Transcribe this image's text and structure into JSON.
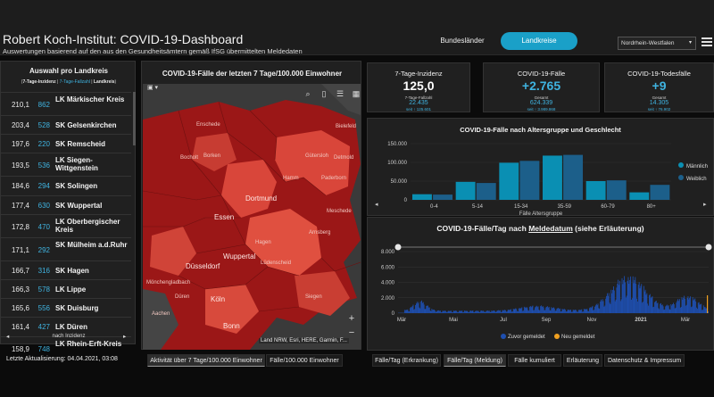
{
  "header": {
    "title": "Robert Koch-Institut: COVID-19-Dashboard",
    "subtitle": "Auswertungen basierend auf den aus den Gesundheitsämtern gemäß IfSG übermittelten Meldedaten",
    "nav": {
      "bundeslaender": "Bundesländer",
      "landkreise": "Landkreise"
    },
    "region_select": "Nordrhein-Westfalen"
  },
  "left_panel": {
    "title": "Auswahl pro Landkreis",
    "subtitle_inc": "7-Tage-Inzidenz",
    "subtitle_cnt": "7-Tage-Fallzahl",
    "subtitle_lk": "Landkreis",
    "rows": [
      {
        "inc": "210,1",
        "cnt": "862",
        "name": "LK Märkischer Kreis"
      },
      {
        "inc": "203,4",
        "cnt": "528",
        "name": "SK Gelsenkirchen"
      },
      {
        "inc": "197,6",
        "cnt": "220",
        "name": "SK Remscheid"
      },
      {
        "inc": "193,5",
        "cnt": "536",
        "name": "LK Siegen-Wittgenstein"
      },
      {
        "inc": "184,6",
        "cnt": "294",
        "name": "SK Solingen"
      },
      {
        "inc": "177,4",
        "cnt": "630",
        "name": "SK Wuppertal"
      },
      {
        "inc": "172,8",
        "cnt": "470",
        "name": "LK Oberbergischer Kreis"
      },
      {
        "inc": "171,1",
        "cnt": "292",
        "name": "SK Mülheim a.d.Ruhr"
      },
      {
        "inc": "166,7",
        "cnt": "316",
        "name": "SK Hagen"
      },
      {
        "inc": "166,3",
        "cnt": "578",
        "name": "LK Lippe"
      },
      {
        "inc": "165,6",
        "cnt": "556",
        "name": "SK Duisburg"
      },
      {
        "inc": "161,4",
        "cnt": "427",
        "name": "LK Düren"
      },
      {
        "inc": "158,9",
        "cnt": "748",
        "name": "LK Rhein-Erft-Kreis"
      }
    ],
    "footer": "nach Inzidenz"
  },
  "map": {
    "title": "COVID-19-Fälle der letzten 7 Tage/100.000 Einwohner",
    "attribution": "Land NRW, Esri, HERE, Garmin, F...",
    "zoom_in": "+",
    "zoom_out": "−",
    "cities": [
      "Enschede",
      "Bielefeld",
      "Bocholt",
      "Borken",
      "Dortmund",
      "Hamm",
      "Paderborn",
      "Essen",
      "Wuppertal",
      "Düsseldorf",
      "Hagen",
      "Lüdenscheid",
      "Arnsberg",
      "Mönchengladbach",
      "Köln",
      "Bonn",
      "Siegen",
      "Aachen",
      "Düren",
      "Detmold",
      "Gütersloh",
      "Meschede"
    ]
  },
  "kpis": [
    {
      "title": "7-Tage-Inzidenz",
      "value": "125,0",
      "label": "7-Tage-Fallzahl",
      "number": "22.435",
      "delta": "seit ↑ 125.601"
    },
    {
      "title": "COVID-19-Fälle",
      "value": "+2.765",
      "label": "Gesamt",
      "number": "624.339",
      "delta": "seit ↑ 3.989.868"
    },
    {
      "title": "COVID-19-Todesfälle",
      "value": "+9",
      "label": "Gesamt",
      "number": "14.305",
      "delta": "seit ↑ 76.902"
    }
  ],
  "chart_age": {
    "title": "COVID-19-Fälle nach Altersgruppe und Geschlecht",
    "axis_label": "Fälle Altersgruppe",
    "legend": [
      "Männlich",
      "Weiblich"
    ],
    "chart_data": {
      "type": "bar",
      "categories": [
        "0-4",
        "5-14",
        "15-34",
        "35-59",
        "60-79",
        "80+"
      ],
      "series": [
        {
          "name": "Männlich",
          "values": [
            15000,
            48000,
            99000,
            118000,
            50000,
            20000
          ]
        },
        {
          "name": "Weiblich",
          "values": [
            14000,
            45000,
            104000,
            120000,
            52000,
            40000
          ]
        }
      ],
      "ylim": [
        0,
        150000
      ],
      "yticks": [
        "0",
        "50.000",
        "100.000",
        "150.000"
      ]
    }
  },
  "chart_daily": {
    "title_pre": "COVID-19-Fälle/Tag nach ",
    "title_link": "Meldedatum",
    "title_post": " (siehe Erläuterung)",
    "legend": [
      "Zuvor gemeldet",
      "Neu gemeldet"
    ],
    "chart_data": {
      "type": "bar",
      "xlabels": [
        "Mär",
        "Mai",
        "Jul",
        "Sep",
        "Nov",
        "2021",
        "Mär"
      ],
      "yticks": [
        "0",
        "2.000",
        "4.000",
        "6.000",
        "8.000"
      ],
      "ylim": [
        0,
        8000
      ],
      "series": [
        {
          "name": "Zuvor gemeldet",
          "color": "#1e4fb0"
        },
        {
          "name": "Neu gemeldet",
          "color": "#f0a020"
        }
      ]
    }
  },
  "footer": {
    "updated": "Letzte Aktualisierung: 04.04.2021, 03:08",
    "tabs": [
      "Aktivität über 7 Tage/100.000 Einwohner",
      "Fälle/100.000 Einwohner",
      "Fälle/Tag (Erkrankung)",
      "Fälle/Tag (Meldung)",
      "Fälle kumuliert",
      "Erläuterung",
      "Datenschutz & Impressum"
    ]
  },
  "colors": {
    "accent": "#1aa0c8",
    "map_dark": "#a01818",
    "map_light": "#e0463a",
    "bar": "#0a8fb3",
    "bar2": "#1c5f8a"
  }
}
